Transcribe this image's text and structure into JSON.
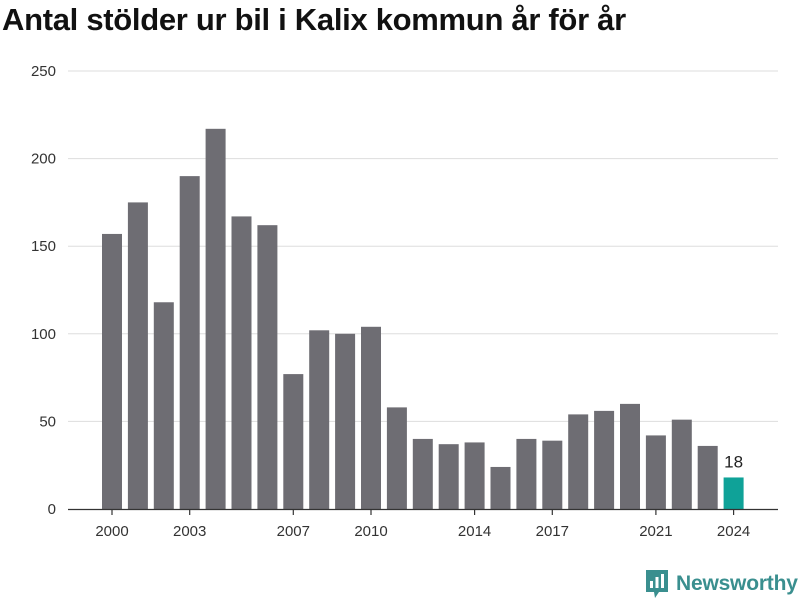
{
  "title": "Antal stölder ur bil i Kalix kommun år för år",
  "brand": {
    "name": "Newsworthy",
    "icon": "newsworthy-logo-icon",
    "color": "#3a8f8f"
  },
  "colors": {
    "bar": "#6e6d73",
    "highlight": "#0fa298",
    "grid": "#dddddd",
    "axis": "#333333"
  },
  "chart_data": {
    "type": "bar",
    "title": "Antal stölder ur bil i Kalix kommun år för år",
    "xlabel": "",
    "ylabel": "",
    "x": [
      2000,
      2001,
      2002,
      2003,
      2004,
      2005,
      2006,
      2007,
      2008,
      2009,
      2010,
      2011,
      2012,
      2013,
      2014,
      2015,
      2016,
      2017,
      2018,
      2019,
      2020,
      2021,
      2022,
      2023,
      2024
    ],
    "values": [
      157,
      175,
      118,
      190,
      217,
      167,
      162,
      77,
      102,
      100,
      104,
      58,
      40,
      37,
      38,
      24,
      40,
      39,
      54,
      56,
      60,
      42,
      51,
      36,
      18
    ],
    "x_tick_labels": [
      "2000",
      "2003",
      "2007",
      "2010",
      "2014",
      "2017",
      "2021",
      "2024"
    ],
    "y_ticks": [
      0,
      50,
      100,
      150,
      200,
      250
    ],
    "ylim": [
      0,
      250
    ],
    "grid": "horizontal",
    "highlight": {
      "x": 2024,
      "label": "18"
    }
  }
}
